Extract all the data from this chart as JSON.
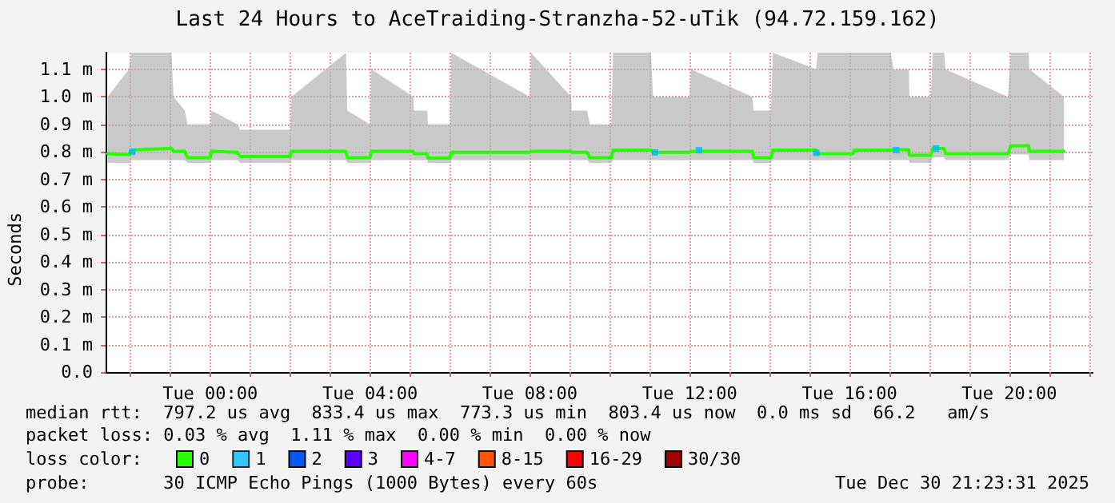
{
  "chart_data": {
    "type": "line",
    "title": "Last 24 Hours to AceTraiding-Stranzha-52-uTik (94.72.159.162)",
    "ylabel": "Seconds",
    "annotations": [
      "median rtt:  797.2 us avg  833.4 us max  773.3 us min  803.4 us now  0.0 ms sd  66.2   am/s",
      "packet loss: 0.03 % avg  1.11 % max  0.00 % min  0.00 % now",
      "probe:       30 ICMP Echo Pings (1000 Bytes) every 60s",
      "Tue Dec 30 21:23:31 2025"
    ],
    "legend_title": "loss color:",
    "legend": "bottom",
    "grid": true,
    "marker": "none",
    "line_style": "solid",
    "xlim": [
      "2025-12-29T21:23",
      "2025-12-30T22:05"
    ],
    "xticks": [
      {
        "value": "2025-12-29T22:00",
        "label": null
      },
      {
        "value": "2025-12-29T23:00",
        "label": null
      },
      {
        "value": "2025-12-30T00:00",
        "label": "Tue 00:00"
      },
      {
        "value": "2025-12-30T01:00",
        "label": null
      },
      {
        "value": "2025-12-30T02:00",
        "label": null
      },
      {
        "value": "2025-12-30T03:00",
        "label": null
      },
      {
        "value": "2025-12-30T04:00",
        "label": "Tue 04:00"
      },
      {
        "value": "2025-12-30T05:00",
        "label": null
      },
      {
        "value": "2025-12-30T06:00",
        "label": null
      },
      {
        "value": "2025-12-30T07:00",
        "label": null
      },
      {
        "value": "2025-12-30T08:00",
        "label": "Tue 08:00"
      },
      {
        "value": "2025-12-30T09:00",
        "label": null
      },
      {
        "value": "2025-12-30T10:00",
        "label": null
      },
      {
        "value": "2025-12-30T11:00",
        "label": null
      },
      {
        "value": "2025-12-30T12:00",
        "label": "Tue 12:00"
      },
      {
        "value": "2025-12-30T13:00",
        "label": null
      },
      {
        "value": "2025-12-30T14:00",
        "label": null
      },
      {
        "value": "2025-12-30T15:00",
        "label": null
      },
      {
        "value": "2025-12-30T16:00",
        "label": "Tue 16:00"
      },
      {
        "value": "2025-12-30T17:00",
        "label": null
      },
      {
        "value": "2025-12-30T18:00",
        "label": null
      },
      {
        "value": "2025-12-30T19:00",
        "label": null
      },
      {
        "value": "2025-12-30T20:00",
        "label": "Tue 20:00"
      },
      {
        "value": "2025-12-30T21:00",
        "label": null
      },
      {
        "value": "2025-12-30T22:00",
        "label": null
      }
    ],
    "ylim": [
      0,
      1.16
    ],
    "yticks": [
      {
        "value": 0,
        "label": "0.0"
      },
      {
        "value": 0.1,
        "label": "0.1 m"
      },
      {
        "value": 0.2,
        "label": "0.2 m"
      },
      {
        "value": 0.3,
        "label": "0.3 m"
      },
      {
        "value": 0.4,
        "label": "0.4 m"
      },
      {
        "value": 0.5,
        "label": "0.5 m"
      },
      {
        "value": 0.6,
        "label": "0.6 m"
      },
      {
        "value": 0.7,
        "label": "0.7 m"
      },
      {
        "value": 0.8,
        "label": "0.8 m"
      },
      {
        "value": 0.9,
        "label": "0.9 m"
      },
      {
        "value": 1.0,
        "label": "1.0 m"
      },
      {
        "value": 1.1,
        "label": "1.1 m"
      }
    ],
    "series": [
      {
        "name": "0",
        "color": "#26ff00",
        "x": [
          "2025-12-29T21:26",
          "2025-12-29T21:58",
          "2025-12-29T22:02",
          "2025-12-29T22:30",
          "2025-12-29T23:02",
          "2025-12-29T23:05",
          "2025-12-29T23:22",
          "2025-12-29T23:26",
          "2025-12-30T00:00",
          "2025-12-30T00:02",
          "2025-12-30T00:41",
          "2025-12-30T00:45",
          "2025-12-30T02:00",
          "2025-12-30T02:02",
          "2025-12-30T03:24",
          "2025-12-30T03:26",
          "2025-12-30T04:00",
          "2025-12-30T04:02",
          "2025-12-30T05:05",
          "2025-12-30T05:06",
          "2025-12-30T05:26",
          "2025-12-30T05:27",
          "2025-12-30T06:00",
          "2025-12-30T06:02",
          "2025-12-30T08:00",
          "2025-12-30T08:02",
          "2025-12-30T09:02",
          "2025-12-30T09:03",
          "2025-12-30T09:26",
          "2025-12-30T09:30",
          "2025-12-30T10:02",
          "2025-12-30T10:05",
          "2025-12-30T11:02",
          "2025-12-30T11:05",
          "2025-12-30T12:00",
          "2025-12-30T12:02",
          "2025-12-30T13:34",
          "2025-12-30T13:36",
          "2025-12-30T14:02",
          "2025-12-30T14:05",
          "2025-12-30T15:10",
          "2025-12-30T15:12",
          "2025-12-30T16:05",
          "2025-12-30T16:07",
          "2025-12-30T17:02",
          "2025-12-30T17:06",
          "2025-12-30T17:29",
          "2025-12-30T17:30",
          "2025-12-30T18:02",
          "2025-12-30T18:05",
          "2025-12-30T18:22",
          "2025-12-30T18:24",
          "2025-12-30T19:58",
          "2025-12-30T20:02",
          "2025-12-30T20:29",
          "2025-12-30T20:30",
          "2025-12-30T21:22"
        ],
        "values": [
          0.793,
          0.79,
          0.806,
          0.81,
          0.812,
          0.802,
          0.802,
          0.779,
          0.779,
          0.802,
          0.798,
          0.783,
          0.783,
          0.802,
          0.802,
          0.779,
          0.779,
          0.802,
          0.802,
          0.793,
          0.793,
          0.777,
          0.777,
          0.798,
          0.798,
          0.802,
          0.802,
          0.798,
          0.798,
          0.779,
          0.779,
          0.806,
          0.806,
          0.798,
          0.798,
          0.802,
          0.802,
          0.779,
          0.779,
          0.806,
          0.806,
          0.793,
          0.793,
          0.806,
          0.806,
          0.808,
          0.808,
          0.787,
          0.787,
          0.812,
          0.812,
          0.793,
          0.793,
          0.822,
          0.822,
          0.802,
          0.802
        ],
        "lower": [
          0.76,
          0.76,
          0.77,
          0.77,
          0.77,
          0.77,
          0.77,
          0.76,
          0.76,
          0.77,
          0.77,
          0.76,
          0.76,
          0.77,
          0.77,
          0.76,
          0.76,
          0.77,
          0.77,
          0.77,
          0.77,
          0.76,
          0.76,
          0.77,
          0.77,
          0.77,
          0.77,
          0.77,
          0.77,
          0.76,
          0.76,
          0.77,
          0.77,
          0.77,
          0.77,
          0.77,
          0.77,
          0.76,
          0.76,
          0.77,
          0.77,
          0.77,
          0.77,
          0.77,
          0.77,
          0.77,
          0.77,
          0.76,
          0.76,
          0.78,
          0.78,
          0.77,
          0.77,
          0.79,
          0.79,
          0.77,
          0.77
        ],
        "upper": [
          1.0,
          1.1,
          1.16,
          1.16,
          1.16,
          1.0,
          0.95,
          0.9,
          0.9,
          0.95,
          0.9,
          0.88,
          0.88,
          1.0,
          1.16,
          0.95,
          0.9,
          1.1,
          1.0,
          0.95,
          0.95,
          0.9,
          0.9,
          1.16,
          1.0,
          1.16,
          1.0,
          0.95,
          0.95,
          0.9,
          0.9,
          1.16,
          1.16,
          1.0,
          1.0,
          1.1,
          1.0,
          0.95,
          0.95,
          1.16,
          1.1,
          1.16,
          1.16,
          1.16,
          1.16,
          1.1,
          1.1,
          1.0,
          1.0,
          1.16,
          1.16,
          1.1,
          1.0,
          1.16,
          1.16,
          1.1,
          1.0
        ]
      },
      {
        "name": "1",
        "color": "#00b8ff",
        "type": "scatter",
        "marker": "square",
        "x": [
          "2025-12-29T22:03",
          "2025-12-30T11:08",
          "2025-12-30T12:14",
          "2025-12-30T15:10",
          "2025-12-30T17:10",
          "2025-12-30T18:10"
        ],
        "values": [
          0.8,
          0.798,
          0.806,
          0.796,
          0.806,
          0.812
        ]
      },
      {
        "name": "2",
        "color": "#0059ff"
      },
      {
        "name": "3",
        "color": "#5e00ff"
      },
      {
        "name": "4-7",
        "color": "#ff00ff"
      },
      {
        "name": "8-15",
        "color": "#ff5500"
      },
      {
        "name": "16-29",
        "color": "#ff0000"
      },
      {
        "name": "30/30",
        "color": "#a10000"
      }
    ]
  }
}
